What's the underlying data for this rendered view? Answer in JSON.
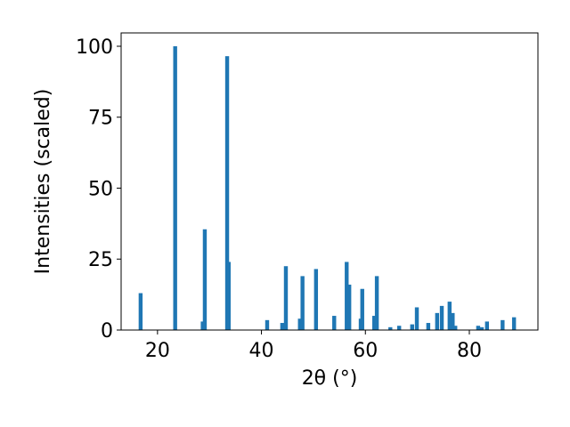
{
  "chart_data": {
    "type": "bar",
    "xlabel": "2θ (°)",
    "ylabel": "Intensities (scaled)",
    "x": [
      16.75,
      23.4,
      28.7,
      29.1,
      33.4,
      33.7,
      41.1,
      44.0,
      44.7,
      47.4,
      47.9,
      50.5,
      54.0,
      56.4,
      56.9,
      59.1,
      59.4,
      61.7,
      62.2,
      64.8,
      66.5,
      69.0,
      69.9,
      72.1,
      73.8,
      74.7,
      76.2,
      76.8,
      77.3,
      81.7,
      82.4,
      83.4,
      86.4,
      88.6
    ],
    "series": [
      {
        "name": "Intensities",
        "color": "#1f77b4",
        "values": [
          13,
          100,
          3,
          35.5,
          96.5,
          24,
          3.5,
          2.5,
          22.5,
          4,
          19,
          21.5,
          5,
          24,
          16,
          4,
          14.5,
          5,
          19,
          1,
          1.5,
          2,
          8,
          2.5,
          6,
          8.5,
          10,
          6,
          1.5,
          1.5,
          1,
          3,
          3.5,
          4.5
        ]
      }
    ],
    "xlim": [
      13.0,
      93.2
    ],
    "ylim": [
      0,
      104.7
    ],
    "xticks": [
      20,
      40,
      60,
      80
    ],
    "yticks": [
      0,
      25,
      50,
      75,
      100
    ]
  }
}
